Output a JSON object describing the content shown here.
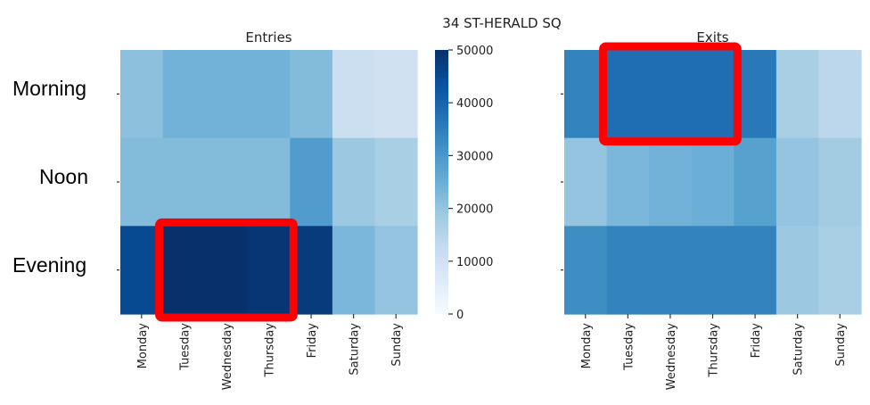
{
  "suptitle": "34 ST-HERALD SQ",
  "row_labels": [
    "Morning",
    "Noon",
    "Evening"
  ],
  "chart_data": [
    {
      "type": "heatmap",
      "title": "Entries",
      "x": [
        "Monday",
        "Tuesday",
        "Wednesday",
        "Thursday",
        "Friday",
        "Saturday",
        "Sunday"
      ],
      "y": [
        "Morning",
        "Noon",
        "Evening"
      ],
      "values": [
        [
          21000,
          24000,
          24000,
          24000,
          22000,
          11000,
          10000
        ],
        [
          22000,
          22000,
          22000,
          22000,
          29000,
          19000,
          17000
        ],
        [
          45000,
          50000,
          50000,
          49000,
          48000,
          23000,
          20000
        ]
      ],
      "highlight": {
        "row": 2,
        "col_start": 1,
        "col_end": 3,
        "color": "#ff0000"
      }
    },
    {
      "type": "heatmap",
      "title": "Exits",
      "x": [
        "Monday",
        "Tuesday",
        "Wednesday",
        "Thursday",
        "Friday",
        "Saturday",
        "Sunday"
      ],
      "y": [
        "Morning",
        "Noon",
        "Evening"
      ],
      "values": [
        [
          34000,
          38000,
          38000,
          38000,
          36000,
          17000,
          14000
        ],
        [
          20000,
          23000,
          24000,
          25000,
          28000,
          20000,
          18000
        ],
        [
          32000,
          34000,
          34000,
          34000,
          34000,
          19000,
          17000
        ]
      ],
      "highlight": {
        "row": 0,
        "col_start": 1,
        "col_end": 3,
        "color": "#ff0000"
      }
    }
  ],
  "colorbar": {
    "range": [
      0,
      50000
    ],
    "ticks": [
      0,
      10000,
      20000,
      30000,
      40000,
      50000
    ],
    "tick_labels": [
      "0",
      "10000",
      "20000",
      "30000",
      "40000",
      "50000"
    ],
    "colormap": "Blues"
  }
}
